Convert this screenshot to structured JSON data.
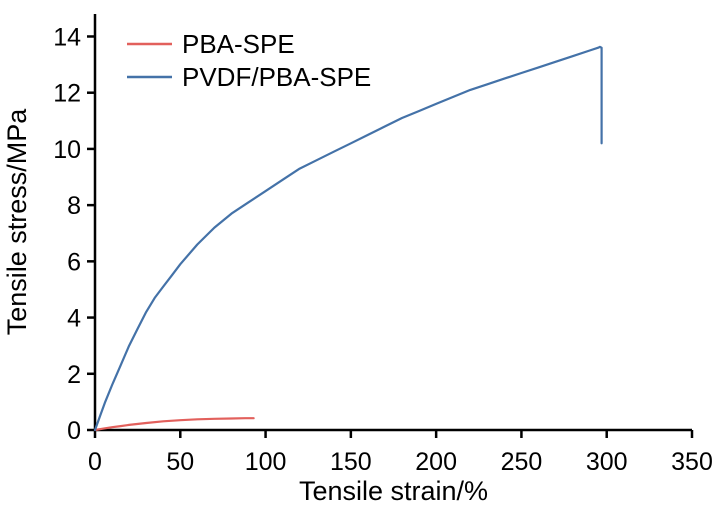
{
  "figure": {
    "background": "#ffffff",
    "axis_color": "#000000"
  },
  "chart_data": {
    "type": "line",
    "title": "",
    "xlabel": "Tensile strain/%",
    "ylabel": "Tensile stress/MPa",
    "xlim": [
      0,
      350
    ],
    "ylim": [
      0,
      14.8
    ],
    "xticks": [
      0,
      50,
      100,
      150,
      200,
      250,
      300,
      350
    ],
    "yticks": [
      0,
      2,
      4,
      6,
      8,
      10,
      12,
      14
    ],
    "grid": false,
    "legend_position": "top-left",
    "series": [
      {
        "name": "PBA-SPE",
        "color": "#e2605c",
        "points": [
          [
            0,
            0
          ],
          [
            5,
            0.05
          ],
          [
            10,
            0.1
          ],
          [
            15,
            0.14
          ],
          [
            20,
            0.18
          ],
          [
            30,
            0.25
          ],
          [
            40,
            0.31
          ],
          [
            50,
            0.35
          ],
          [
            60,
            0.38
          ],
          [
            70,
            0.4
          ],
          [
            80,
            0.41
          ],
          [
            88,
            0.42
          ],
          [
            93,
            0.42
          ]
        ]
      },
      {
        "name": "PVDF/PBA-SPE",
        "color": "#4472a8",
        "points": [
          [
            0,
            0
          ],
          [
            3,
            0.5
          ],
          [
            6,
            1.0
          ],
          [
            10,
            1.6
          ],
          [
            15,
            2.3
          ],
          [
            20,
            3.0
          ],
          [
            25,
            3.6
          ],
          [
            30,
            4.2
          ],
          [
            35,
            4.7
          ],
          [
            40,
            5.1
          ],
          [
            45,
            5.5
          ],
          [
            50,
            5.9
          ],
          [
            60,
            6.6
          ],
          [
            70,
            7.2
          ],
          [
            80,
            7.7
          ],
          [
            90,
            8.1
          ],
          [
            100,
            8.5
          ],
          [
            110,
            8.9
          ],
          [
            120,
            9.3
          ],
          [
            130,
            9.6
          ],
          [
            140,
            9.9
          ],
          [
            150,
            10.2
          ],
          [
            160,
            10.5
          ],
          [
            170,
            10.8
          ],
          [
            180,
            11.1
          ],
          [
            190,
            11.35
          ],
          [
            200,
            11.6
          ],
          [
            210,
            11.85
          ],
          [
            220,
            12.1
          ],
          [
            230,
            12.3
          ],
          [
            240,
            12.5
          ],
          [
            250,
            12.7
          ],
          [
            260,
            12.9
          ],
          [
            270,
            13.1
          ],
          [
            280,
            13.3
          ],
          [
            290,
            13.5
          ],
          [
            295,
            13.6
          ],
          [
            296,
            13.63
          ],
          [
            297,
            13.6
          ],
          [
            297,
            10.2
          ]
        ]
      }
    ]
  }
}
